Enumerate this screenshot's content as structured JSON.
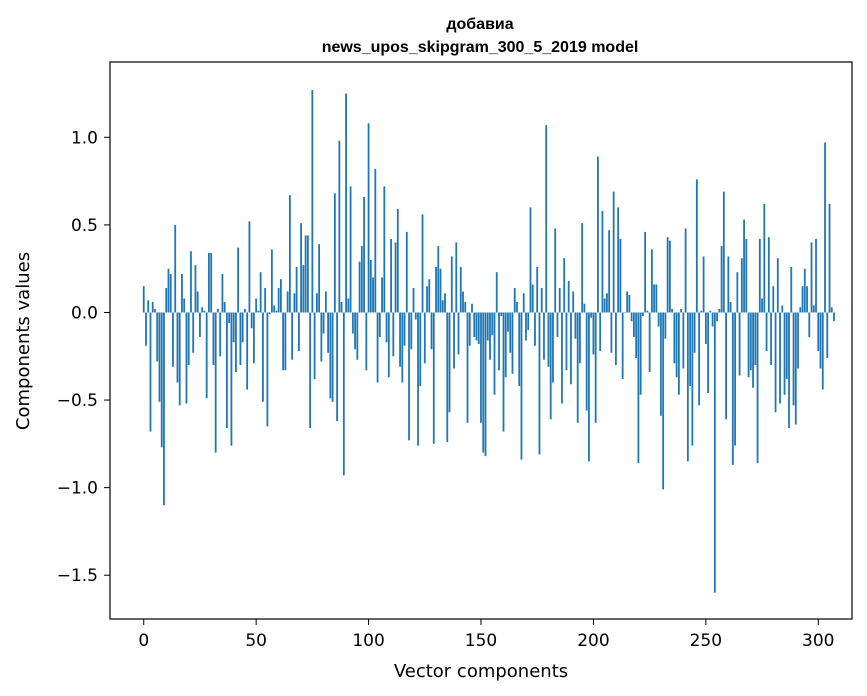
{
  "chart_data": {
    "type": "bar",
    "title": "добавиа",
    "subtitle": "news_upos_skipgram_300_5_2019 model",
    "xlabel": "Vector components",
    "ylabel": "Components values",
    "xlim": [
      -15,
      315
    ],
    "ylim": [
      -1.75,
      1.43
    ],
    "xticks": [
      0,
      50,
      100,
      150,
      200,
      250,
      300
    ],
    "xtick_labels": [
      "0",
      "50",
      "100",
      "150",
      "200",
      "250",
      "300"
    ],
    "yticks": [
      -1.5,
      -1.0,
      -0.5,
      0.0,
      0.5,
      1.0
    ],
    "ytick_labels": [
      "−1.5",
      "−1.0",
      "−0.5",
      "0.0",
      "0.5",
      "1.0"
    ],
    "grid": false,
    "bar_color": "#1f77b4",
    "x_start": 0,
    "values": [
      0.15,
      -0.19,
      0.07,
      -0.68,
      0.06,
      0.02,
      -0.28,
      -0.51,
      -0.77,
      -1.1,
      0.14,
      0.25,
      0.22,
      -0.31,
      0.5,
      -0.4,
      -0.53,
      0.22,
      0.08,
      -0.52,
      -0.3,
      0.35,
      -0.23,
      0.27,
      0.12,
      -0.14,
      0.03,
      0.01,
      -0.49,
      0.34,
      0.34,
      -0.3,
      -0.8,
      0.02,
      -0.25,
      0.22,
      0.06,
      -0.66,
      -0.06,
      -0.76,
      -0.17,
      -0.34,
      0.37,
      -0.3,
      -0.17,
      0.02,
      -0.44,
      0.52,
      -0.09,
      -0.29,
      0.08,
      0.01,
      0.23,
      -0.51,
      0.14,
      -0.65,
      -0.01,
      0.36,
      0.04,
      0.01,
      0.14,
      0.19,
      -0.33,
      -0.33,
      0.12,
      0.67,
      -0.27,
      0.11,
      0.26,
      -0.22,
      0.51,
      0.27,
      0.44,
      0.44,
      -0.66,
      1.27,
      -0.38,
      0.11,
      0.39,
      -0.28,
      -0.12,
      0.12,
      -0.23,
      -0.49,
      -0.51,
      0.68,
      -0.62,
      0.98,
      0.06,
      -0.93,
      1.25,
      0.08,
      0.72,
      -0.12,
      -0.21,
      -0.27,
      0.29,
      0.38,
      0.66,
      -0.33,
      1.08,
      0.3,
      0.2,
      0.82,
      -0.4,
      -0.14,
      0.2,
      0.72,
      -0.17,
      -0.37,
      0.42,
      -0.25,
      0.4,
      0.59,
      -0.31,
      -0.4,
      -0.19,
      0.46,
      -0.73,
      -0.21,
      0.14,
      -0.04,
      -0.76,
      -0.42,
      0.56,
      -0.29,
      0.15,
      0.19,
      -0.21,
      -0.75,
      0.26,
      0.38,
      0.25,
      0.07,
      0.11,
      -0.74,
      -0.57,
      0.32,
      -0.32,
      0.4,
      -0.24,
      0.26,
      0.12,
      0.06,
      -0.63,
      -0.19,
      0.05,
      -0.14,
      -0.16,
      -0.18,
      -0.63,
      -0.8,
      -0.82,
      -0.16,
      -0.27,
      -0.13,
      -0.47,
      0.23,
      -0.33,
      -0.02,
      -0.68,
      -0.37,
      -0.11,
      -0.23,
      -0.35,
      0.14,
      0.06,
      -0.42,
      -0.84,
      0.11,
      -0.16,
      -0.1,
      0.6,
      0.16,
      -0.19,
      0.26,
      -0.81,
      0.14,
      -0.27,
      1.07,
      -0.31,
      -0.61,
      -0.4,
      0.48,
      -0.14,
      0.14,
      -0.52,
      0.31,
      -0.33,
      0.18,
      -0.41,
      0.12,
      -0.15,
      -0.63,
      -0.29,
      0.51,
      0.05,
      -0.56,
      -0.85,
      -0.03,
      -0.24,
      -0.63,
      0.89,
      -0.22,
      0.58,
      0.08,
      0.11,
      0.47,
      -0.23,
      0.69,
      -0.3,
      0.6,
      0.42,
      -0.38,
      0.0,
      0.12,
      0.1,
      -0.05,
      -0.14,
      -0.26,
      -0.86,
      -0.47,
      -0.02,
      0.46,
      0.01,
      -0.34,
      0.36,
      0.16,
      0.16,
      -0.08,
      -0.59,
      -1.01,
      -0.15,
      0.43,
      0.41,
      0.02,
      -0.29,
      -0.37,
      -0.47,
      0.02,
      -0.32,
      0.48,
      -0.85,
      -0.42,
      -0.76,
      -0.23,
      0.76,
      -0.53,
      0.01,
      0.32,
      -0.18,
      -0.46,
      0.01,
      -0.08,
      -1.6,
      -0.05,
      0.02,
      0.38,
      0.69,
      -0.61,
      0.32,
      0.06,
      -0.87,
      -0.76,
      0.23,
      -0.36,
      0.31,
      0.53,
      0.42,
      -0.37,
      -0.33,
      -0.43,
      -0.3,
      -0.86,
      0.42,
      0.08,
      0.62,
      -0.22,
      0.43,
      -0.3,
      0.15,
      -0.57,
      0.31,
      -0.52,
      0.04,
      -0.47,
      -0.38,
      -0.66,
      0.26,
      -0.53,
      -0.64,
      -0.32,
      0.03,
      0.15,
      0.25,
      0.15,
      -0.14,
      0.4,
      0.04,
      0.42,
      -0.22,
      -0.32,
      -0.44,
      0.97,
      -0.26,
      0.62,
      0.03,
      -0.05
    ]
  }
}
